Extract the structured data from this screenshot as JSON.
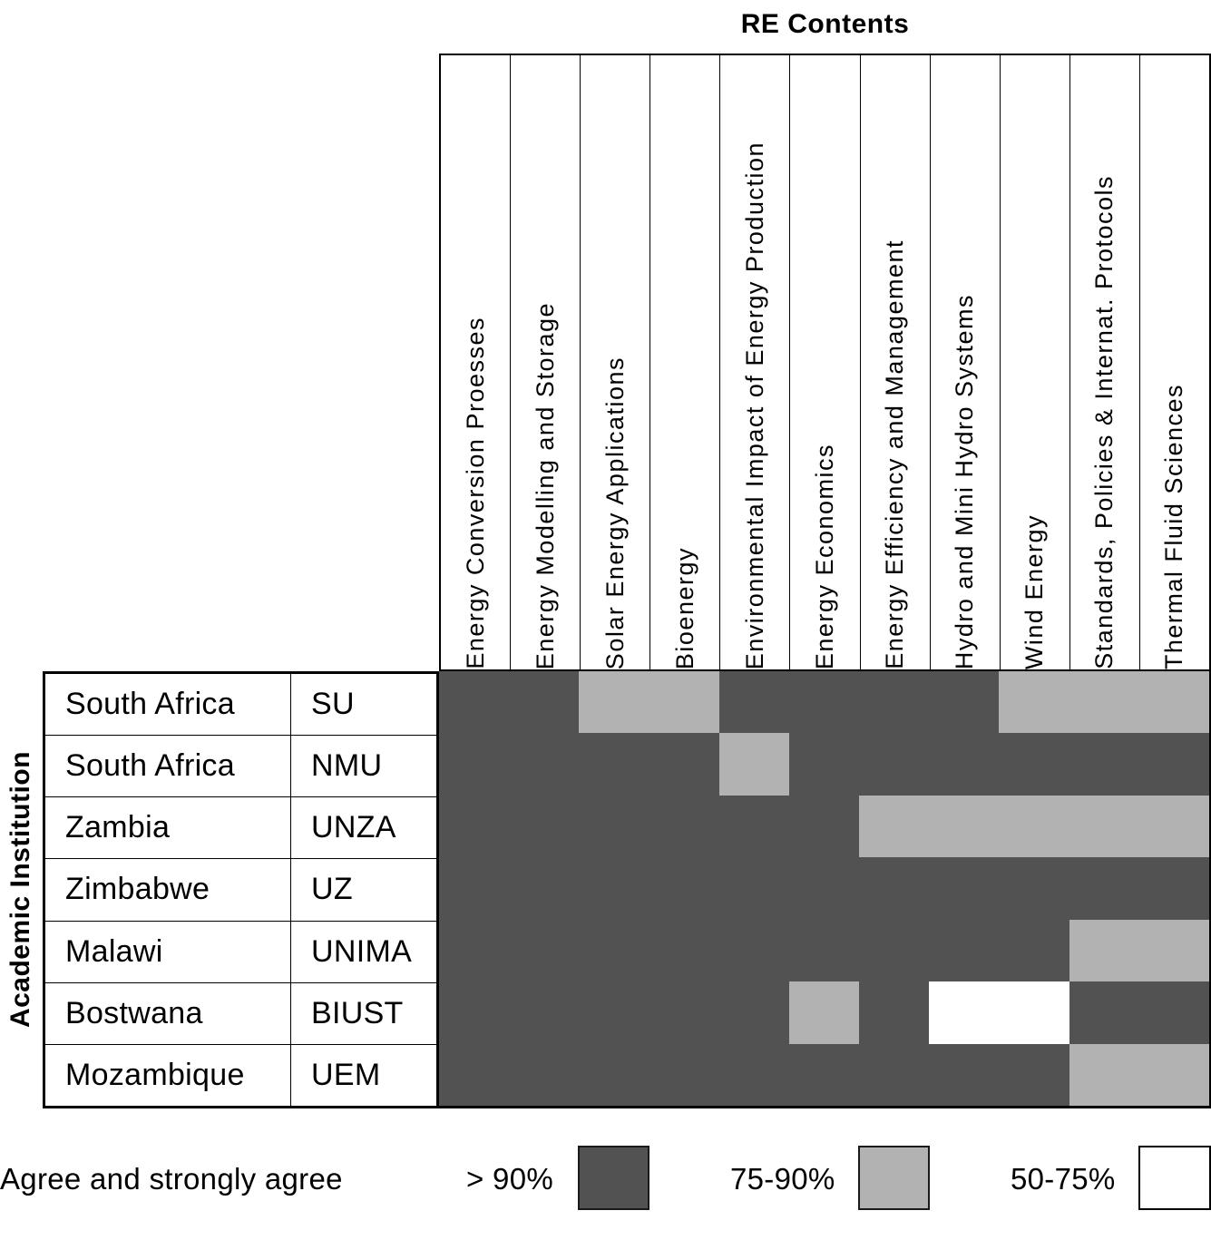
{
  "title": "RE Contents",
  "row_axis_label": "Academic Institution",
  "legend": {
    "title": "Agree and strongly agree",
    "position": "bottom",
    "items": [
      {
        "label": "> 90%",
        "value": ">90%"
      },
      {
        "label": "75-90%",
        "value": "75-90%"
      },
      {
        "label": "50-75%",
        "value": "50-75%"
      }
    ]
  },
  "colors": {
    "gt90": "#525252",
    "mid75_90": "#b2b2b2",
    "low50_75": "#ffffff",
    "border": "#000000"
  },
  "chart_data": {
    "type": "heatmap",
    "title": "RE Contents",
    "xlabel": "RE Contents",
    "ylabel": "Academic Institution",
    "legend_title": "Agree and strongly agree",
    "value_levels": [
      ">90%",
      "75-90%",
      "50-75%"
    ],
    "color_map": {
      ">90%": "#525252",
      "75-90%": "#b2b2b2",
      "50-75%": "#ffffff"
    },
    "columns": [
      "Energy Conversion Proesses",
      "Energy Modelling and Storage",
      "Solar Energy Applications",
      "Bioenergy",
      "Environmental Impact of Energy Production",
      "Energy Economics",
      "Energy Efficiency and Management",
      "Hydro and Mini Hydro Systems",
      "Wind Energy",
      "Standards, Policies & Internat. Protocols",
      "Thermal Fluid Sciences"
    ],
    "rows": [
      {
        "country": "South Africa",
        "institution": "SU",
        "values": [
          ">90%",
          ">90%",
          "75-90%",
          "75-90%",
          ">90%",
          ">90%",
          ">90%",
          ">90%",
          "75-90%",
          "75-90%",
          "75-90%"
        ]
      },
      {
        "country": "South Africa",
        "institution": "NMU",
        "values": [
          ">90%",
          ">90%",
          ">90%",
          ">90%",
          "75-90%",
          ">90%",
          ">90%",
          ">90%",
          ">90%",
          ">90%",
          ">90%"
        ]
      },
      {
        "country": "Zambia",
        "institution": "UNZA",
        "values": [
          ">90%",
          ">90%",
          ">90%",
          ">90%",
          ">90%",
          ">90%",
          "75-90%",
          "75-90%",
          "75-90%",
          "75-90%",
          "75-90%"
        ]
      },
      {
        "country": "Zimbabwe",
        "institution": "UZ",
        "values": [
          ">90%",
          ">90%",
          ">90%",
          ">90%",
          ">90%",
          ">90%",
          ">90%",
          ">90%",
          ">90%",
          ">90%",
          ">90%"
        ]
      },
      {
        "country": "Malawi",
        "institution": "UNIMA",
        "values": [
          ">90%",
          ">90%",
          ">90%",
          ">90%",
          ">90%",
          ">90%",
          ">90%",
          ">90%",
          ">90%",
          "75-90%",
          "75-90%"
        ]
      },
      {
        "country": "Bostwana",
        "institution": "BIUST",
        "values": [
          ">90%",
          ">90%",
          ">90%",
          ">90%",
          ">90%",
          "75-90%",
          ">90%",
          "50-75%",
          "50-75%",
          ">90%",
          ">90%"
        ]
      },
      {
        "country": "Mozambique",
        "institution": "UEM",
        "values": [
          ">90%",
          ">90%",
          ">90%",
          ">90%",
          ">90%",
          ">90%",
          ">90%",
          ">90%",
          ">90%",
          "75-90%",
          "75-90%"
        ]
      }
    ]
  }
}
